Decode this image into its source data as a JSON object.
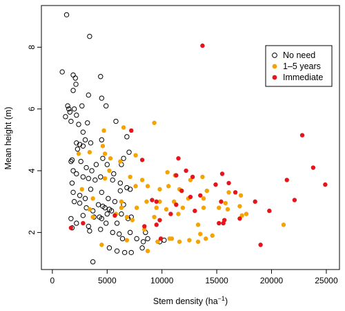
{
  "chart_data": {
    "type": "scatter",
    "title": "",
    "xlabel": "Stem density (ha",
    "xlabel_sup": "−1",
    "xlabel_close": ")",
    "ylabel": "Mean height (m)",
    "xlim": [
      -1000,
      26200
    ],
    "ylim": [
      0.8,
      9.35
    ],
    "xticks": [
      0,
      5000,
      10000,
      15000,
      20000,
      25000
    ],
    "xtick_labels": [
      "0",
      "5000",
      "10000",
      "15000",
      "20000",
      "25000"
    ],
    "yticks": [
      2,
      4,
      6,
      8
    ],
    "ytick_labels": [
      "2",
      "4",
      "6",
      "8"
    ],
    "grid": false,
    "legend_position": "top-right",
    "series": [
      {
        "name": "No need",
        "color": "#000000",
        "marker": "open-circle",
        "points": [
          [
            1300,
            9.05
          ],
          [
            3400,
            8.35
          ],
          [
            900,
            7.2
          ],
          [
            1900,
            7.1
          ],
          [
            2100,
            7.0
          ],
          [
            2150,
            6.8
          ],
          [
            1900,
            6.6
          ],
          [
            4400,
            7.05
          ],
          [
            4500,
            6.35
          ],
          [
            3300,
            6.45
          ],
          [
            2700,
            6.1
          ],
          [
            1400,
            6.1
          ],
          [
            1500,
            6.0
          ],
          [
            1600,
            5.9
          ],
          [
            1200,
            5.75
          ],
          [
            4900,
            6.1
          ],
          [
            2000,
            6.0
          ],
          [
            2200,
            5.8
          ],
          [
            1700,
            5.6
          ],
          [
            2400,
            5.5
          ],
          [
            2800,
            5.25
          ],
          [
            3200,
            5.55
          ],
          [
            3000,
            5.0
          ],
          [
            3500,
            4.9
          ],
          [
            2200,
            4.9
          ],
          [
            2500,
            4.85
          ],
          [
            2800,
            4.8
          ],
          [
            2300,
            4.7
          ],
          [
            5800,
            5.6
          ],
          [
            6800,
            5.1
          ],
          [
            7000,
            4.6
          ],
          [
            6500,
            4.4
          ],
          [
            6300,
            4.2
          ],
          [
            4500,
            5.0
          ],
          [
            1800,
            4.35
          ],
          [
            1700,
            4.3
          ],
          [
            2600,
            4.3
          ],
          [
            3100,
            4.1
          ],
          [
            3600,
            4.0
          ],
          [
            4000,
            4.2
          ],
          [
            4600,
            4.4
          ],
          [
            5000,
            4.2
          ],
          [
            5600,
            3.9
          ],
          [
            5500,
            3.7
          ],
          [
            6200,
            3.6
          ],
          [
            6800,
            3.45
          ],
          [
            7100,
            3.4
          ],
          [
            1900,
            4.0
          ],
          [
            2200,
            3.9
          ],
          [
            2800,
            3.8
          ],
          [
            3300,
            3.75
          ],
          [
            3900,
            3.7
          ],
          [
            4400,
            3.8
          ],
          [
            1800,
            3.6
          ],
          [
            1900,
            3.3
          ],
          [
            2500,
            3.2
          ],
          [
            3000,
            3.1
          ],
          [
            3500,
            3.4
          ],
          [
            4500,
            3.3
          ],
          [
            5100,
            3.1
          ],
          [
            5700,
            3.0
          ],
          [
            6200,
            3.35
          ],
          [
            2000,
            3.0
          ],
          [
            2500,
            2.95
          ],
          [
            3100,
            2.8
          ],
          [
            3700,
            2.7
          ],
          [
            4200,
            2.9
          ],
          [
            4800,
            2.8
          ],
          [
            5400,
            2.7
          ],
          [
            4300,
            2.5
          ],
          [
            5000,
            2.6
          ],
          [
            5200,
            2.75
          ],
          [
            6500,
            2.9
          ],
          [
            7200,
            2.5
          ],
          [
            5900,
            2.3
          ],
          [
            6300,
            2.6
          ],
          [
            6900,
            2.45
          ],
          [
            1700,
            2.45
          ],
          [
            2200,
            2.3
          ],
          [
            2800,
            2.55
          ],
          [
            3300,
            2.2
          ],
          [
            3800,
            2.5
          ],
          [
            3400,
            2.05
          ],
          [
            4400,
            2.1
          ],
          [
            4900,
            2.3
          ],
          [
            5500,
            2.0
          ],
          [
            6100,
            1.95
          ],
          [
            7100,
            2.0
          ],
          [
            7700,
            1.8
          ],
          [
            8300,
            1.7
          ],
          [
            8700,
            1.8
          ],
          [
            8500,
            2.0
          ],
          [
            8200,
            1.5
          ],
          [
            9800,
            1.7
          ],
          [
            10200,
            1.75
          ],
          [
            1800,
            2.15
          ],
          [
            6400,
            1.8
          ],
          [
            5200,
            1.5
          ],
          [
            6600,
            1.35
          ],
          [
            5900,
            1.4
          ],
          [
            7200,
            1.35
          ],
          [
            3700,
            1.05
          ],
          [
            4500,
            2.45
          ],
          [
            4600,
            2.85
          ]
        ]
      },
      {
        "name": "1–5 years",
        "color": "#f5a301",
        "marker": "filled-circle",
        "points": [
          [
            4700,
            5.3
          ],
          [
            6500,
            5.4
          ],
          [
            9300,
            5.55
          ],
          [
            4600,
            4.8
          ],
          [
            3400,
            4.6
          ],
          [
            2400,
            4.55
          ],
          [
            4800,
            4.55
          ],
          [
            5300,
            4.4
          ],
          [
            6200,
            4.3
          ],
          [
            7600,
            4.5
          ],
          [
            5200,
            4.0
          ],
          [
            4800,
            3.75
          ],
          [
            7100,
            3.8
          ],
          [
            8200,
            3.7
          ],
          [
            10500,
            3.95
          ],
          [
            11200,
            3.85
          ],
          [
            12600,
            3.7
          ],
          [
            13700,
            3.8
          ],
          [
            7600,
            3.5
          ],
          [
            8700,
            3.5
          ],
          [
            9800,
            3.4
          ],
          [
            10600,
            3.5
          ],
          [
            11600,
            3.4
          ],
          [
            14100,
            3.35
          ],
          [
            16100,
            3.3
          ],
          [
            17200,
            3.2
          ],
          [
            2700,
            3.4
          ],
          [
            3700,
            3.1
          ],
          [
            6300,
            3.0
          ],
          [
            8600,
            3.0
          ],
          [
            9800,
            3.0
          ],
          [
            11100,
            3.0
          ],
          [
            12400,
            3.1
          ],
          [
            13800,
            3.1
          ],
          [
            15800,
            2.95
          ],
          [
            17100,
            2.85
          ],
          [
            3400,
            2.75
          ],
          [
            6300,
            2.8
          ],
          [
            7700,
            2.8
          ],
          [
            9500,
            2.8
          ],
          [
            10400,
            2.75
          ],
          [
            11900,
            2.8
          ],
          [
            13800,
            2.8
          ],
          [
            15200,
            2.8
          ],
          [
            16000,
            2.75
          ],
          [
            17700,
            2.6
          ],
          [
            3700,
            2.5
          ],
          [
            5800,
            2.6
          ],
          [
            6800,
            2.5
          ],
          [
            7300,
            2.4
          ],
          [
            9300,
            2.5
          ],
          [
            11500,
            2.6
          ],
          [
            13300,
            2.25
          ],
          [
            17300,
            2.55
          ],
          [
            21100,
            2.25
          ],
          [
            4500,
            1.6
          ],
          [
            6800,
            1.75
          ],
          [
            8400,
            2.1
          ],
          [
            9600,
            1.7
          ],
          [
            10900,
            1.8
          ],
          [
            11600,
            1.7
          ],
          [
            12500,
            1.75
          ],
          [
            13500,
            1.95
          ],
          [
            14000,
            1.8
          ],
          [
            14600,
            1.9
          ],
          [
            13300,
            1.7
          ],
          [
            8700,
            1.4
          ],
          [
            10700,
            1.8
          ]
        ]
      },
      {
        "name": "Immediate",
        "color": "#e8141b",
        "marker": "filled-circle",
        "points": [
          [
            13700,
            8.05
          ],
          [
            22800,
            5.15
          ],
          [
            7200,
            5.3
          ],
          [
            8200,
            4.35
          ],
          [
            11500,
            4.4
          ],
          [
            12200,
            4.0
          ],
          [
            12800,
            3.8
          ],
          [
            11300,
            3.85
          ],
          [
            11800,
            3.35
          ],
          [
            15500,
            3.9
          ],
          [
            14900,
            3.55
          ],
          [
            16100,
            3.6
          ],
          [
            13500,
            3.2
          ],
          [
            12600,
            3.15
          ],
          [
            16700,
            3.3
          ],
          [
            21400,
            3.7
          ],
          [
            23800,
            4.1
          ],
          [
            24900,
            3.55
          ],
          [
            15400,
            3.0
          ],
          [
            18500,
            3.0
          ],
          [
            22100,
            3.05
          ],
          [
            19800,
            2.7
          ],
          [
            13000,
            2.7
          ],
          [
            15700,
            2.4
          ],
          [
            15200,
            2.3
          ],
          [
            15600,
            2.3
          ],
          [
            17100,
            2.45
          ],
          [
            10800,
            2.6
          ],
          [
            11300,
            2.9
          ],
          [
            9500,
            3.0
          ],
          [
            9100,
            3.05
          ],
          [
            9800,
            2.4
          ],
          [
            9500,
            2.25
          ],
          [
            8400,
            2.2
          ],
          [
            5700,
            2.55
          ],
          [
            2800,
            2.3
          ],
          [
            1700,
            2.15
          ],
          [
            19000,
            1.6
          ],
          [
            9900,
            1.8
          ]
        ]
      }
    ]
  }
}
